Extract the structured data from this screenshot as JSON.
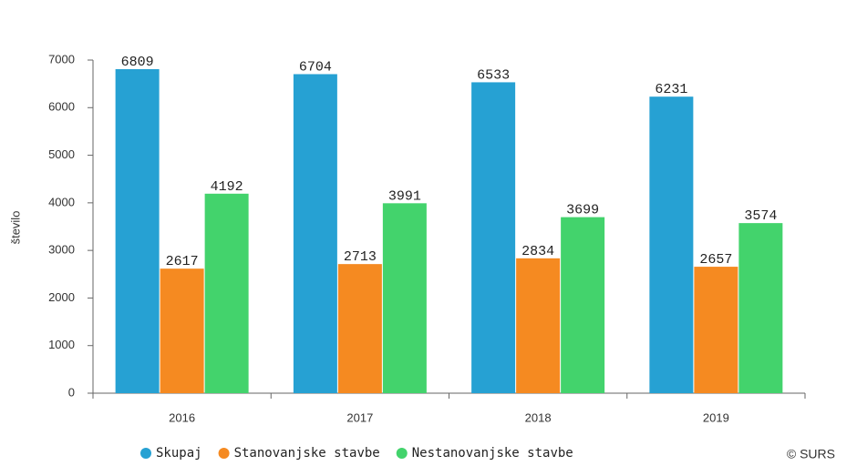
{
  "chart_data": {
    "type": "bar",
    "y_label": "število",
    "credit": "© SURS",
    "categories": [
      "2016",
      "2017",
      "2018",
      "2019"
    ],
    "series": [
      {
        "name": "Skupaj",
        "color": "#26a1d3",
        "values": [
          6809,
          6704,
          6533,
          6231
        ]
      },
      {
        "name": "Stanovanjske stavbe",
        "color": "#f58a21",
        "values": [
          2617,
          2713,
          2834,
          2657
        ]
      },
      {
        "name": "Nestanovanjske stavbe",
        "color": "#43d36c",
        "values": [
          4192,
          3991,
          3699,
          3574
        ]
      }
    ],
    "ylim": [
      0,
      7000
    ],
    "yticks": [
      0,
      1000,
      2000,
      3000,
      4000,
      5000,
      6000,
      7000
    ],
    "grid": false,
    "legend": "bottom"
  }
}
